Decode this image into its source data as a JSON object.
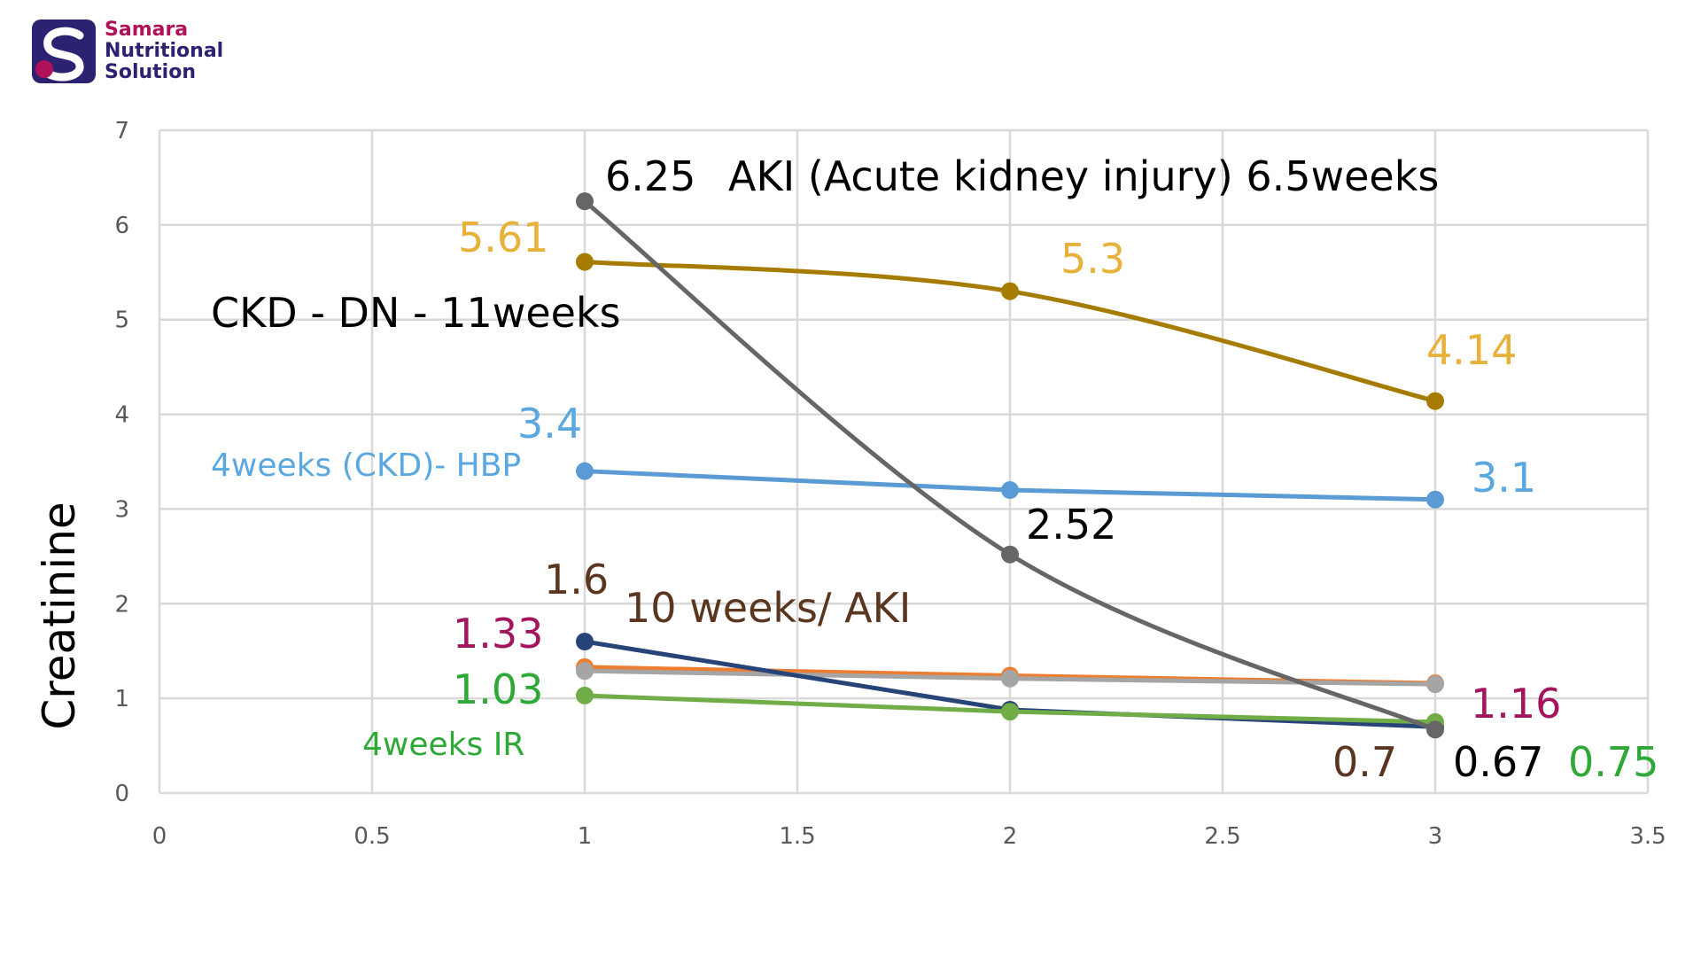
{
  "logo": {
    "icon": "samara-s-logo-icon",
    "lines": [
      "Samara",
      "Nutritional",
      "Solution"
    ],
    "colors": {
      "samara": "#b0125a",
      "nutritional": "#2b2272",
      "solution": "#2b2272",
      "icon_dark": "#2b2272",
      "icon_accent": "#b0125a"
    }
  },
  "chart_data": {
    "type": "line",
    "xlabel": "",
    "ylabel": "Creatinine",
    "xlim": [
      0,
      3.5
    ],
    "ylim": [
      0,
      7
    ],
    "xticks": [
      0,
      0.5,
      1,
      1.5,
      2,
      2.5,
      3,
      3.5
    ],
    "yticks": [
      0,
      1,
      2,
      3,
      4,
      5,
      6,
      7
    ],
    "xtick_labels": [
      "0",
      "0.5",
      "1",
      "1.5",
      "2",
      "2.5",
      "3",
      "3.5"
    ],
    "ytick_labels": [
      "0",
      "1",
      "2",
      "3",
      "4",
      "5",
      "6",
      "7"
    ],
    "grid": true,
    "legend": "none",
    "series": [
      {
        "color": "#a67c00",
        "smooth": true,
        "points": [
          [
            1,
            5.61
          ],
          [
            2,
            5.3
          ],
          [
            3,
            4.14
          ]
        ]
      },
      {
        "color": "#5b9bd5",
        "smooth": false,
        "points": [
          [
            1,
            3.4
          ],
          [
            2,
            3.2
          ],
          [
            3,
            3.1
          ]
        ]
      },
      {
        "color": "#ed7d31",
        "smooth": false,
        "points": [
          [
            1,
            1.33
          ],
          [
            2,
            1.24
          ],
          [
            3,
            1.16
          ]
        ]
      },
      {
        "color": "#a5a5a5",
        "smooth": false,
        "points": [
          [
            1,
            1.29
          ],
          [
            2,
            1.21
          ],
          [
            3,
            1.15
          ]
        ]
      },
      {
        "color": "#264478",
        "smooth": false,
        "points": [
          [
            1,
            1.6
          ],
          [
            2,
            0.88
          ],
          [
            3,
            0.7
          ]
        ]
      },
      {
        "color": "#70ad47",
        "smooth": false,
        "points": [
          [
            1,
            1.03
          ],
          [
            2,
            0.86
          ],
          [
            3,
            0.75
          ]
        ]
      },
      {
        "color": "#666666",
        "smooth": true,
        "points": [
          [
            1,
            6.25
          ],
          [
            2,
            2.52
          ],
          [
            3,
            0.67
          ]
        ]
      }
    ],
    "annotations": [
      {
        "id": "ann-6-25",
        "text": "6.25",
        "color": "#000000",
        "size": 46
      },
      {
        "id": "ann-aki-6-5",
        "text": "AKI (Acute kidney injury) 6.5weeks",
        "color": "#000000",
        "size": 46
      },
      {
        "id": "ann-5-61",
        "text": "5.61",
        "color": "#e8b13a",
        "size": 46
      },
      {
        "id": "ann-5-3",
        "text": "5.3",
        "color": "#e8b13a",
        "size": 46
      },
      {
        "id": "ann-ckd-dn",
        "text": "CKD - DN - 11weeks",
        "color": "#000000",
        "size": 46
      },
      {
        "id": "ann-4-14",
        "text": "4.14",
        "color": "#e8b13a",
        "size": 46
      },
      {
        "id": "ann-3-4",
        "text": "3.4",
        "color": "#5ba8e0",
        "size": 46
      },
      {
        "id": "ann-4weeks-hbp",
        "text": "4weeks (CKD)- HBP",
        "color": "#5ba8e0",
        "size": 36
      },
      {
        "id": "ann-3-1",
        "text": "3.1",
        "color": "#5ba8e0",
        "size": 46
      },
      {
        "id": "ann-2-52",
        "text": "2.52",
        "color": "#000000",
        "size": 46
      },
      {
        "id": "ann-1-6",
        "text": "1.6",
        "color": "#5a3520",
        "size": 46
      },
      {
        "id": "ann-10-weeks-aki",
        "text": "10 weeks/ AKI",
        "color": "#5a3520",
        "size": 46
      },
      {
        "id": "ann-1-33",
        "text": "1.33",
        "color": "#a3155c",
        "size": 46
      },
      {
        "id": "ann-1-03",
        "text": "1.03",
        "color": "#2ea836",
        "size": 46
      },
      {
        "id": "ann-4weeks-ir",
        "text": "4weeks IR",
        "color": "#2ea836",
        "size": 36
      },
      {
        "id": "ann-1-16",
        "text": "1.16",
        "color": "#a3155c",
        "size": 46
      },
      {
        "id": "ann-0-7",
        "text": "0.7",
        "color": "#5a3520",
        "size": 46
      },
      {
        "id": "ann-0-67",
        "text": "0.67",
        "color": "#000000",
        "size": 46
      },
      {
        "id": "ann-0-75",
        "text": "0.75",
        "color": "#2ea836",
        "size": 46
      }
    ],
    "colors": {
      "grid": "#d9d9d9",
      "tick_text": "#595959"
    }
  }
}
